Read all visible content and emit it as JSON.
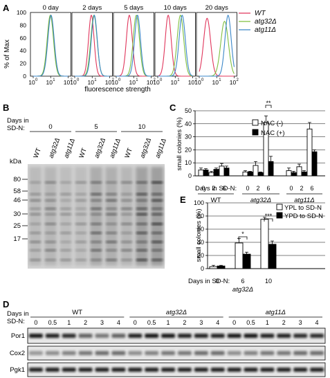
{
  "panels": {
    "A": {
      "letter": "A",
      "ylabel": "% of Max",
      "xlabel": "fluorescence strength",
      "yticks": [
        "0",
        "20",
        "40",
        "60",
        "80",
        "100"
      ],
      "xticks_first": [
        "10",
        "0",
        "10",
        "1",
        "10",
        "2"
      ],
      "time_labels": [
        "0 day",
        "2 days",
        "5 days",
        "10 days",
        "20 days"
      ],
      "legend": [
        {
          "label": "WT",
          "color": "#e0345a"
        },
        {
          "label": "atg32Δ",
          "color": "#7fbf3f"
        },
        {
          "label": "atg11Δ",
          "color": "#3a86c8"
        }
      ]
    },
    "B": {
      "letter": "B",
      "days_label_1": "Days in",
      "days_label_2": "SD-N:",
      "day_groups": [
        "0",
        "5",
        "10"
      ],
      "lanes": [
        "WT",
        "atg32Δ",
        "atg11Δ",
        "WT",
        "atg32Δ",
        "atg11Δ",
        "WT",
        "atg32Δ",
        "atg11Δ"
      ],
      "kda_label": "kDa",
      "markers": [
        "80",
        "58",
        "46",
        "30",
        "25",
        "17"
      ]
    },
    "C": {
      "letter": "C",
      "ylabel": "small colonies (%)",
      "yticks": [
        "0",
        "10",
        "20",
        "30",
        "40",
        "50"
      ],
      "legend": [
        "NAC (-)",
        "NAC (+)"
      ],
      "days_label": "Days in SD-N:",
      "day_ticks": [
        "0",
        "2",
        "6",
        "0",
        "2",
        "6",
        "0",
        "2",
        "6"
      ],
      "groups": [
        "WT",
        "atg32Δ",
        "atg11Δ"
      ],
      "significance": "**"
    },
    "E": {
      "letter": "E",
      "ylabel": "small colonies (%)",
      "yticks": [
        "0",
        "20",
        "40",
        "60",
        "80",
        "100"
      ],
      "legend": [
        "YPL to SD-N",
        "YPD to SD-N"
      ],
      "days_label": "Days in SD-N:",
      "day_ticks": [
        "0",
        "6",
        "10"
      ],
      "group": "atg32Δ",
      "sig1": "*",
      "sig2": "***"
    },
    "D": {
      "letter": "D",
      "days_label_1": "Days in",
      "days_label_2": "SD-N:",
      "groups": [
        "WT",
        "atg32Δ",
        "atg11Δ"
      ],
      "day_ticks": [
        "0",
        "0.5",
        "1",
        "2",
        "3",
        "4",
        "0",
        "0.5",
        "1",
        "2",
        "3",
        "4",
        "0",
        "0.5",
        "1",
        "2",
        "3",
        "4"
      ],
      "rows": [
        "Por1",
        "Cox2",
        "Pgk1"
      ]
    }
  },
  "chart_data": [
    {
      "type": "bar",
      "panel": "C",
      "ylabel": "small colonies (%)",
      "ylim": [
        0,
        50
      ],
      "categories": [
        "WT 0",
        "WT 2",
        "WT 6",
        "atg32Δ 0",
        "atg32Δ 2",
        "atg32Δ 6",
        "atg11Δ 0",
        "atg11Δ 2",
        "atg11Δ 6"
      ],
      "series": [
        {
          "name": "NAC (-)",
          "values": [
            4.5,
            2.5,
            7.5,
            3,
            8,
            41,
            4,
            7,
            36
          ],
          "errors": [
            1.5,
            1,
            2,
            1,
            3,
            5,
            2,
            2,
            5
          ]
        },
        {
          "name": "NAC (+)",
          "values": [
            4.5,
            5,
            6,
            3,
            2.5,
            11,
            2.5,
            3,
            18.5
          ],
          "errors": [
            1,
            1,
            1.5,
            0.5,
            0.5,
            4,
            1,
            1,
            1.5
          ]
        }
      ]
    },
    {
      "type": "bar",
      "panel": "E",
      "ylabel": "small colonies (%)",
      "ylim": [
        0,
        100
      ],
      "categories": [
        "0",
        "6",
        "10"
      ],
      "series": [
        {
          "name": "YPL to SD-N",
          "values": [
            3,
            39,
            75
          ],
          "errors": [
            2,
            7,
            3
          ]
        },
        {
          "name": "YPD to SD-N",
          "values": [
            4,
            22,
            37
          ],
          "errors": [
            1,
            3,
            5
          ]
        }
      ]
    }
  ]
}
